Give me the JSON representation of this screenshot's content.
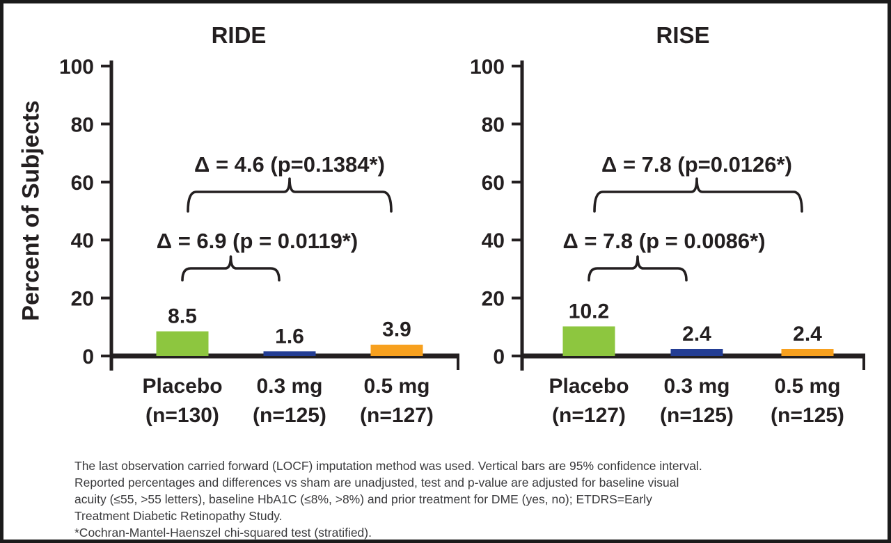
{
  "figure": {
    "ylabel": "Percent of Subjects",
    "footnotes": [
      "The last observation carried forward (LOCF) imputation method was used. Vertical bars are 95% confidence interval.",
      "Reported percentages and differences vs sham are unadjusted, test and p-value are adjusted for baseline visual",
      "acuity (≤55, >55 letters), baseline HbA1C (≤8%, >8%) and prior treatment for DME (yes, no); ETDRS=Early",
      "Treatment Diabetic Retinopathy Study.",
      "*Cochran-Mantel-Haenszel chi-squared test (stratified)."
    ]
  },
  "chart_data": [
    {
      "type": "bar",
      "title": "RIDE",
      "categories": [
        "Placebo",
        "0.3 mg",
        "0.5 mg"
      ],
      "category_sublabels": [
        "(n=130)",
        "(n=125)",
        "(n=127)"
      ],
      "values": [
        8.5,
        1.6,
        3.9
      ],
      "value_labels": [
        "8.5",
        "1.6",
        "3.9"
      ],
      "bar_colors": [
        "#8DC63F",
        "#233D94",
        "#F7A01E"
      ],
      "ylabel": "Percent of Subjects",
      "ylim": [
        0,
        100
      ],
      "yticks": [
        0,
        20,
        40,
        60,
        80,
        100
      ],
      "grid": false,
      "annotations": [
        {
          "text": "Δ = 6.9 (p = 0.0119*)",
          "delta": 6.9,
          "p_value": "0.0119",
          "span": [
            0,
            1
          ],
          "level": "lower"
        },
        {
          "text": "Δ = 4.6 (p=0.1384*)",
          "delta": 4.6,
          "p_value": "0.1384",
          "span": [
            0,
            2
          ],
          "level": "upper"
        }
      ]
    },
    {
      "type": "bar",
      "title": "RISE",
      "categories": [
        "Placebo",
        "0.3 mg",
        "0.5 mg"
      ],
      "category_sublabels": [
        "(n=127)",
        "(n=125)",
        "(n=125)"
      ],
      "values": [
        10.2,
        2.4,
        2.4
      ],
      "value_labels": [
        "10.2",
        "2.4",
        "2.4"
      ],
      "bar_colors": [
        "#8DC63F",
        "#233D94",
        "#F7A01E"
      ],
      "ylabel": "Percent of Subjects",
      "ylim": [
        0,
        100
      ],
      "yticks": [
        0,
        20,
        40,
        60,
        80,
        100
      ],
      "grid": false,
      "annotations": [
        {
          "text": "Δ = 7.8 (p = 0.0086*)",
          "delta": 7.8,
          "p_value": "0.0086",
          "span": [
            0,
            1
          ],
          "level": "lower"
        },
        {
          "text": "Δ = 7.8 (p=0.0126*)",
          "delta": 7.8,
          "p_value": "0.0126",
          "span": [
            0,
            2
          ],
          "level": "upper"
        }
      ]
    }
  ]
}
